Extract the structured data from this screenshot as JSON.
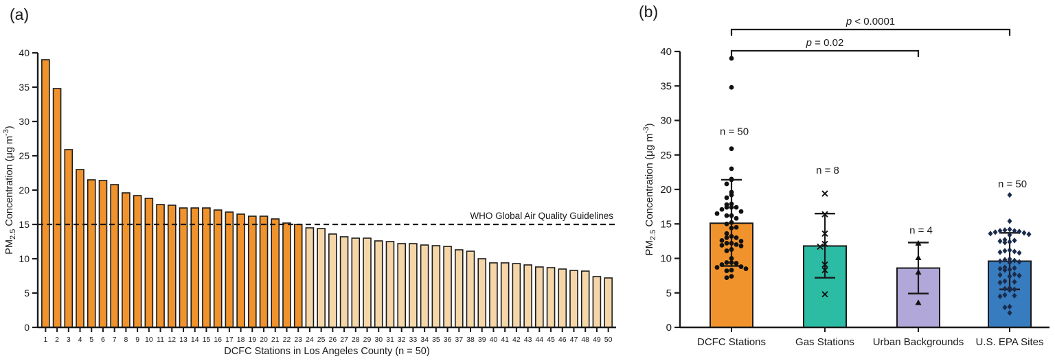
{
  "panels": {
    "a_label": "(a)",
    "b_label": "(b)"
  },
  "colors": {
    "orange": "#F0932C",
    "tan": "#F5D6A8",
    "teal": "#2CBCA4",
    "purple": "#B1A7D9",
    "blue": "#377CBE",
    "marker_black": "#111111",
    "marker_navy": "#1A2B4C",
    "axis": "#1A1A1A"
  },
  "chart_data": [
    {
      "id": "a",
      "type": "bar",
      "title": "",
      "xlabel": "DCFC Stations in Los Angeles County (n = 50)",
      "ylabel": {
        "p1": "PM",
        "sub": "2.5",
        "p2": " Concentration (μg m",
        "sup": "-3",
        "p3": ")"
      },
      "ylim": [
        0,
        40
      ],
      "yticks": [
        0,
        5,
        10,
        15,
        20,
        25,
        30,
        35,
        40
      ],
      "categories": [
        "1",
        "2",
        "3",
        "4",
        "5",
        "6",
        "7",
        "8",
        "9",
        "10",
        "11",
        "12",
        "13",
        "14",
        "15",
        "16",
        "17",
        "18",
        "19",
        "20",
        "21",
        "22",
        "23",
        "24",
        "25",
        "26",
        "27",
        "28",
        "29",
        "30",
        "31",
        "32",
        "33",
        "34",
        "35",
        "36",
        "37",
        "38",
        "39",
        "40",
        "41",
        "42",
        "43",
        "44",
        "45",
        "46",
        "47",
        "48",
        "49",
        "50"
      ],
      "values": [
        39.0,
        34.8,
        25.9,
        23.0,
        21.5,
        21.4,
        20.8,
        19.6,
        19.2,
        18.8,
        17.9,
        17.8,
        17.4,
        17.4,
        17.4,
        17.1,
        16.8,
        16.5,
        16.2,
        16.2,
        15.8,
        15.2,
        15.0,
        14.5,
        14.4,
        13.6,
        13.2,
        13.0,
        13.0,
        12.6,
        12.5,
        12.2,
        12.2,
        12.0,
        11.9,
        11.8,
        11.3,
        11.1,
        10.0,
        9.4,
        9.4,
        9.3,
        9.1,
        8.8,
        8.7,
        8.5,
        8.3,
        8.2,
        7.4,
        7.2
      ],
      "threshold": {
        "value": 15,
        "label": "WHO Global Air Quality Guidelines"
      },
      "grid": false
    },
    {
      "id": "b",
      "type": "bar-scatter",
      "title": "",
      "xlabel": "",
      "ylabel": {
        "p1": "PM",
        "sub": "2.5",
        "p2": " Concentration (μg m",
        "sup": "-3",
        "p3": ")"
      },
      "ylim": [
        0,
        40
      ],
      "yticks": [
        0,
        5,
        10,
        15,
        20,
        25,
        30,
        35,
        40
      ],
      "series": [
        {
          "label": "DCFC Stations",
          "n_label": "n = 50",
          "n_label_y": 27.9,
          "mean": 15.1,
          "err_low": 8.9,
          "err_high": 21.4,
          "color": "#F0932C",
          "marker": "circle",
          "points": [
            39.0,
            34.8,
            25.9,
            23.0,
            21.5,
            21.4,
            20.8,
            19.6,
            19.2,
            18.8,
            17.9,
            17.8,
            17.4,
            17.4,
            17.4,
            17.1,
            16.8,
            16.5,
            16.2,
            16.2,
            15.8,
            15.2,
            15.0,
            14.5,
            14.4,
            13.6,
            13.2,
            13.0,
            13.0,
            12.6,
            12.5,
            12.2,
            12.2,
            12.0,
            11.9,
            11.8,
            11.3,
            11.1,
            10.0,
            9.4,
            9.4,
            9.3,
            9.1,
            8.8,
            8.7,
            8.5,
            8.3,
            8.2,
            7.4,
            7.2
          ]
        },
        {
          "label": "Gas Stations",
          "n_label": "n = 8",
          "n_label_y": 22.3,
          "mean": 11.8,
          "err_low": 7.2,
          "err_high": 16.5,
          "color": "#2CBCA4",
          "marker": "x",
          "points": [
            19.4,
            16.4,
            13.6,
            12.1,
            11.7,
            9.1,
            8.3,
            4.8
          ]
        },
        {
          "label": "Urban Backgrounds",
          "n_label": "n = 4",
          "n_label_y": 13.6,
          "mean": 8.6,
          "err_low": 4.9,
          "err_high": 12.3,
          "color": "#B1A7D9",
          "marker": "triangle",
          "points": [
            12.2,
            10.1,
            8.0,
            3.6
          ]
        },
        {
          "label": "U.S. EPA Sites",
          "n_label": "n = 50",
          "n_label_y": 20.3,
          "mean": 9.6,
          "err_low": 5.5,
          "err_high": 13.7,
          "color": "#377CBE",
          "marker": "diamond",
          "points": [
            19.2,
            15.4,
            14.2,
            14.1,
            14.0,
            14.0,
            13.9,
            13.8,
            13.7,
            13.6,
            13.5,
            13.4,
            12.7,
            12.6,
            12.5,
            12.4,
            12.3,
            11.2,
            11.1,
            11.0,
            10.9,
            10.8,
            9.9,
            9.8,
            9.7,
            9.6,
            9.5,
            9.4,
            8.7,
            8.6,
            8.5,
            8.4,
            8.3,
            7.7,
            7.6,
            7.5,
            7.4,
            6.7,
            6.6,
            6.5,
            5.7,
            5.6,
            5.5,
            5.4,
            4.7,
            4.6,
            4.5,
            3.0,
            2.9,
            2.1
          ]
        }
      ],
      "significance": [
        {
          "label": "p < 0.0001",
          "from": 0,
          "to": 3,
          "row": 1
        },
        {
          "label": "p = 0.02",
          "from": 0,
          "to": 2,
          "row": 0
        }
      ],
      "grid": false
    }
  ]
}
